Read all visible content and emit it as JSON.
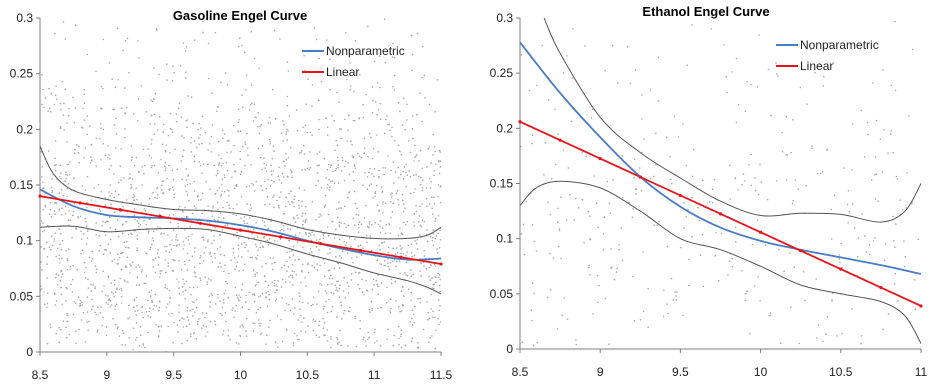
{
  "colors": {
    "nonparametric": "#4a7cc4",
    "linear": "#e8141c",
    "band": "#555555",
    "scatter": "#a8a8a8",
    "axis": "#7f7f7f"
  },
  "chart_data": [
    {
      "type": "line",
      "title": "Gasoline Engel Curve",
      "x_ticks": [
        "8.5",
        "9",
        "9.5",
        "10",
        "10.5",
        "11",
        "11.5"
      ],
      "y_ticks": [
        "0",
        "0.05",
        "0.1",
        "0.15",
        "0.2",
        "0.25",
        "0.3"
      ],
      "xlim": [
        8.5,
        11.5
      ],
      "ylim": [
        0,
        0.3
      ],
      "legend": "top-right",
      "grid": false,
      "scatter_cloud": {
        "mean_center": 0.1,
        "spread": 0.07,
        "density": "high"
      },
      "series": [
        {
          "name": "Nonparametric",
          "x": [
            8.5,
            8.75,
            9.0,
            9.25,
            9.5,
            9.75,
            10.0,
            10.25,
            10.5,
            10.75,
            11.0,
            11.25,
            11.5
          ],
          "y": [
            0.146,
            0.131,
            0.123,
            0.121,
            0.12,
            0.118,
            0.114,
            0.108,
            0.1,
            0.093,
            0.087,
            0.083,
            0.084
          ]
        },
        {
          "name": "Linear",
          "x": [
            8.5,
            11.5
          ],
          "y": [
            0.14,
            0.079
          ]
        },
        {
          "name": "",
          "role": "upper band",
          "x": [
            8.5,
            8.6,
            8.75,
            9.0,
            9.25,
            9.5,
            9.75,
            10.0,
            10.25,
            10.5,
            10.75,
            11.0,
            11.25,
            11.4,
            11.5
          ],
          "y": [
            0.185,
            0.16,
            0.145,
            0.137,
            0.132,
            0.128,
            0.127,
            0.124,
            0.118,
            0.11,
            0.105,
            0.102,
            0.102,
            0.105,
            0.112
          ]
        },
        {
          "name": "",
          "role": "lower band",
          "x": [
            8.5,
            8.75,
            9.0,
            9.25,
            9.5,
            9.75,
            10.0,
            10.25,
            10.5,
            10.75,
            11.0,
            11.25,
            11.4,
            11.5
          ],
          "y": [
            0.112,
            0.113,
            0.108,
            0.11,
            0.111,
            0.11,
            0.104,
            0.097,
            0.088,
            0.08,
            0.071,
            0.064,
            0.058,
            0.052
          ]
        }
      ]
    },
    {
      "type": "line",
      "title": "Ethanol Engel Curve",
      "x_ticks": [
        "8.5",
        "9",
        "9.5",
        "10",
        "10.5",
        "11"
      ],
      "y_ticks": [
        "0",
        "0.05",
        "0.1",
        "0.15",
        "0.2",
        "0.25",
        "0.3"
      ],
      "xlim": [
        8.5,
        11
      ],
      "ylim": [
        0,
        0.3
      ],
      "legend": "top-right",
      "grid": false,
      "scatter_cloud": {
        "mean_center": 0.11,
        "spread": 0.08,
        "density": "low"
      },
      "series": [
        {
          "name": "Nonparametric",
          "x": [
            8.5,
            8.75,
            9.0,
            9.25,
            9.5,
            9.75,
            10.0,
            10.25,
            10.5,
            10.75,
            11.0
          ],
          "y": [
            0.278,
            0.232,
            0.192,
            0.156,
            0.129,
            0.11,
            0.098,
            0.09,
            0.083,
            0.076,
            0.068
          ]
        },
        {
          "name": "Linear",
          "x": [
            8.5,
            11.0
          ],
          "y": [
            0.206,
            0.039
          ]
        },
        {
          "name": "",
          "role": "upper band",
          "x": [
            8.65,
            8.75,
            9.0,
            9.25,
            9.5,
            9.75,
            10.0,
            10.25,
            10.5,
            10.75,
            10.9,
            11.0
          ],
          "y": [
            0.3,
            0.268,
            0.21,
            0.178,
            0.155,
            0.134,
            0.121,
            0.123,
            0.122,
            0.115,
            0.125,
            0.15
          ]
        },
        {
          "name": "",
          "role": "lower band",
          "x": [
            8.5,
            8.6,
            8.75,
            9.0,
            9.25,
            9.5,
            9.75,
            10.0,
            10.25,
            10.5,
            10.75,
            10.9,
            11.0
          ],
          "y": [
            0.13,
            0.146,
            0.152,
            0.146,
            0.125,
            0.1,
            0.09,
            0.075,
            0.058,
            0.05,
            0.043,
            0.03,
            0.005
          ]
        }
      ]
    }
  ]
}
